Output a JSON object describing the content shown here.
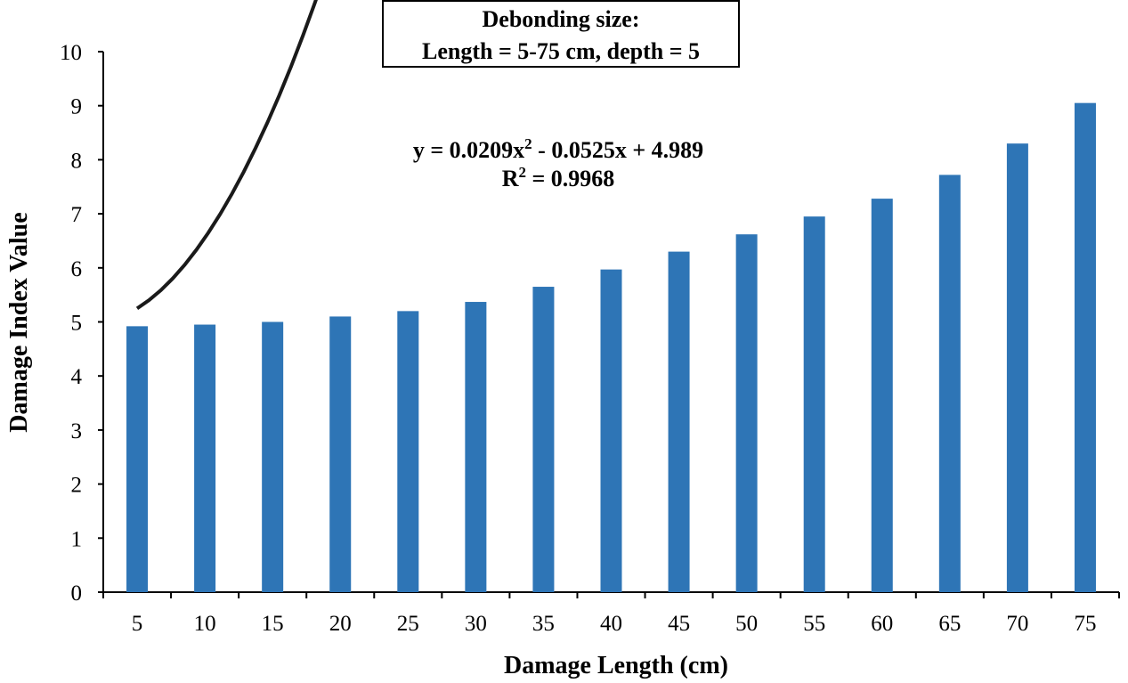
{
  "chart_data": {
    "type": "bar",
    "title_line1": "Debonding size:",
    "title_line2": "Length = 5-75 cm, depth = 5",
    "xlabel": "Damage Length (cm)",
    "ylabel": "Damage Index Value",
    "categories": [
      "5",
      "10",
      "15",
      "20",
      "25",
      "30",
      "35",
      "40",
      "45",
      "50",
      "55",
      "60",
      "65",
      "70",
      "75"
    ],
    "x": [
      5,
      10,
      15,
      20,
      25,
      30,
      35,
      40,
      45,
      50,
      55,
      60,
      65,
      70,
      75
    ],
    "values": [
      4.92,
      4.95,
      5.0,
      5.1,
      5.2,
      5.37,
      5.65,
      5.97,
      6.3,
      6.62,
      6.95,
      7.28,
      7.72,
      8.3,
      9.05
    ],
    "ylim": [
      0,
      10
    ],
    "yticks": [
      "0",
      "1",
      "2",
      "3",
      "4",
      "5",
      "6",
      "7",
      "8",
      "9",
      "10"
    ],
    "bar_color": "#2e75b6",
    "trendline": {
      "type": "polynomial",
      "a": 0.0209,
      "b": -0.0525,
      "c": 4.989,
      "equation_prefix": "y = 0.0209x",
      "equation_sup": "2",
      "equation_suffix": " - 0.0525x + 4.989",
      "r2_prefix": "R",
      "r2_sup": "2",
      "r2_suffix": " = 0.9968",
      "color": "#1a1a1a"
    }
  }
}
